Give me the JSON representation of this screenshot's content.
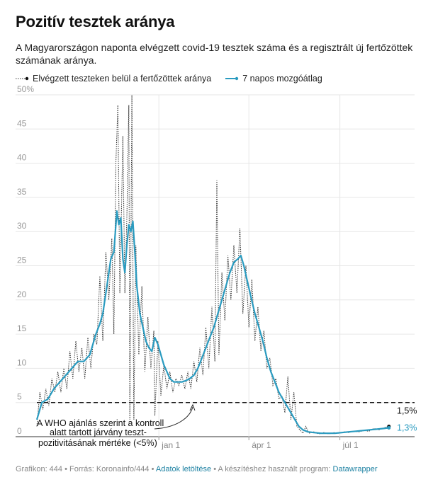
{
  "title": "Pozitív tesztek aránya",
  "subtitle": "A Magyarországon naponta elvégzett covid-19 tesztek száma és a regisztrált új fertőzöttek számának aránya.",
  "legend": {
    "daily_label": "Elvégzett teszteken belül a fertőzöttek aránya",
    "avg_label": "7 napos mozgóátlag"
  },
  "colors": {
    "daily": "#333333",
    "avg": "#2a9bc0",
    "threshold": "#111111",
    "grid": "#e6e6e6"
  },
  "footer": {
    "prefix": "Grafikon: 444 • Forrás: Koronainfo/444 • ",
    "download_link": "Adatok letöltése",
    "middle": " • A készítéshez használt program: ",
    "tool_link": "Datawrapper"
  },
  "chart_data": {
    "type": "line",
    "x_axis": {
      "type": "date",
      "range": [
        "2020-09-01",
        "2021-08-22"
      ],
      "ticks": [
        {
          "date": "2021-01-01",
          "label": "jan 1"
        },
        {
          "date": "2021-04-01",
          "label": "ápr 1"
        },
        {
          "date": "2021-07-01",
          "label": "júl 1"
        }
      ]
    },
    "y_axis": {
      "range": [
        0,
        50
      ],
      "ticks": [
        0,
        5,
        10,
        15,
        20,
        25,
        30,
        35,
        40,
        45,
        50
      ],
      "top_tick_label": "50%",
      "grid": true
    },
    "series": [
      {
        "name": "Elvégzett teszteken belül a fertőzöttek aránya",
        "style": "dotted",
        "points": [
          [
            "2020-09-01",
            1.5
          ],
          [
            "2020-09-04",
            6.5
          ],
          [
            "2020-09-07",
            4.0
          ],
          [
            "2020-09-10",
            7.0
          ],
          [
            "2020-09-13",
            4.5
          ],
          [
            "2020-09-16",
            8.5
          ],
          [
            "2020-09-19",
            6.5
          ],
          [
            "2020-09-22",
            9.5
          ],
          [
            "2020-09-25",
            6.5
          ],
          [
            "2020-09-28",
            10.0
          ],
          [
            "2020-10-01",
            7.0
          ],
          [
            "2020-10-04",
            12.5
          ],
          [
            "2020-10-07",
            8.5
          ],
          [
            "2020-10-10",
            14.0
          ],
          [
            "2020-10-13",
            9.5
          ],
          [
            "2020-10-16",
            13.0
          ],
          [
            "2020-10-19",
            8.5
          ],
          [
            "2020-10-22",
            14.5
          ],
          [
            "2020-10-25",
            10.0
          ],
          [
            "2020-10-28",
            15.0
          ],
          [
            "2020-10-31",
            13.5
          ],
          [
            "2020-11-03",
            23.5
          ],
          [
            "2020-11-06",
            14.0
          ],
          [
            "2020-11-09",
            27.0
          ],
          [
            "2020-11-12",
            20.0
          ],
          [
            "2020-11-15",
            29.0
          ],
          [
            "2020-11-17",
            15.0
          ],
          [
            "2020-11-19",
            40.0
          ],
          [
            "2020-11-21",
            48.5
          ],
          [
            "2020-11-23",
            21.0
          ],
          [
            "2020-11-26",
            44.0
          ],
          [
            "2020-11-28",
            21.0
          ],
          [
            "2020-11-30",
            32.0
          ],
          [
            "2020-12-02",
            48.5
          ],
          [
            "2020-12-03",
            2.5
          ],
          [
            "2020-12-05",
            50.0
          ],
          [
            "2020-12-07",
            2.5
          ],
          [
            "2020-12-09",
            28.0
          ],
          [
            "2020-12-12",
            12.0
          ],
          [
            "2020-12-15",
            22.0
          ],
          [
            "2020-12-18",
            9.5
          ],
          [
            "2020-12-21",
            17.5
          ],
          [
            "2020-12-24",
            10.0
          ],
          [
            "2020-12-27",
            15.5
          ],
          [
            "2020-12-28",
            3.0
          ],
          [
            "2020-12-31",
            14.0
          ],
          [
            "2021-01-03",
            6.0
          ],
          [
            "2021-01-06",
            10.5
          ],
          [
            "2021-01-09",
            7.0
          ],
          [
            "2021-01-12",
            9.5
          ],
          [
            "2021-01-15",
            6.5
          ],
          [
            "2021-01-18",
            8.5
          ],
          [
            "2021-01-21",
            7.5
          ],
          [
            "2021-01-24",
            9.0
          ],
          [
            "2021-01-27",
            7.0
          ],
          [
            "2021-01-30",
            9.5
          ],
          [
            "2021-02-02",
            7.0
          ],
          [
            "2021-02-05",
            11.0
          ],
          [
            "2021-02-08",
            8.0
          ],
          [
            "2021-02-11",
            13.0
          ],
          [
            "2021-02-14",
            9.0
          ],
          [
            "2021-02-17",
            16.0
          ],
          [
            "2021-02-20",
            10.0
          ],
          [
            "2021-02-23",
            19.0
          ],
          [
            "2021-02-26",
            11.0
          ],
          [
            "2021-02-28",
            37.5
          ],
          [
            "2021-03-02",
            12.0
          ],
          [
            "2021-03-05",
            24.0
          ],
          [
            "2021-03-08",
            17.0
          ],
          [
            "2021-03-11",
            26.5
          ],
          [
            "2021-03-14",
            20.0
          ],
          [
            "2021-03-17",
            28.0
          ],
          [
            "2021-03-20",
            21.0
          ],
          [
            "2021-03-23",
            30.5
          ],
          [
            "2021-03-26",
            18.0
          ],
          [
            "2021-03-29",
            25.0
          ],
          [
            "2021-04-01",
            16.0
          ],
          [
            "2021-04-04",
            23.0
          ],
          [
            "2021-04-07",
            14.0
          ],
          [
            "2021-04-10",
            19.0
          ],
          [
            "2021-04-13",
            12.5
          ],
          [
            "2021-04-16",
            15.5
          ],
          [
            "2021-04-19",
            10.0
          ],
          [
            "2021-04-22",
            11.5
          ],
          [
            "2021-04-25",
            7.5
          ],
          [
            "2021-04-28",
            8.5
          ],
          [
            "2021-05-01",
            5.5
          ],
          [
            "2021-05-04",
            6.0
          ],
          [
            "2021-05-07",
            3.5
          ],
          [
            "2021-05-10",
            8.8
          ],
          [
            "2021-05-13",
            2.5
          ],
          [
            "2021-05-16",
            6.5
          ],
          [
            "2021-05-19",
            1.5
          ],
          [
            "2021-05-22",
            1.0
          ],
          [
            "2021-05-25",
            0.5
          ],
          [
            "2021-05-28",
            1.5
          ],
          [
            "2021-05-31",
            0.5
          ],
          [
            "2021-06-05",
            0.7
          ],
          [
            "2021-06-10",
            0.4
          ],
          [
            "2021-06-15",
            0.6
          ],
          [
            "2021-06-20",
            0.4
          ],
          [
            "2021-06-25",
            0.6
          ],
          [
            "2021-06-30",
            0.5
          ],
          [
            "2021-07-05",
            0.7
          ],
          [
            "2021-07-10",
            0.6
          ],
          [
            "2021-07-15",
            0.8
          ],
          [
            "2021-07-20",
            0.7
          ],
          [
            "2021-07-25",
            0.9
          ],
          [
            "2021-07-30",
            0.8
          ],
          [
            "2021-08-04",
            1.2
          ],
          [
            "2021-08-09",
            1.0
          ],
          [
            "2021-08-14",
            1.3
          ],
          [
            "2021-08-19",
            1.5
          ]
        ],
        "end_label": "1,5%"
      },
      {
        "name": "7 napos mozgóátlag",
        "style": "solid",
        "points": [
          [
            "2020-09-01",
            2.5
          ],
          [
            "2020-09-06",
            5.0
          ],
          [
            "2020-09-12",
            5.5
          ],
          [
            "2020-09-18",
            7.0
          ],
          [
            "2020-09-24",
            8.0
          ],
          [
            "2020-09-30",
            9.0
          ],
          [
            "2020-10-06",
            10.0
          ],
          [
            "2020-10-12",
            11.0
          ],
          [
            "2020-10-18",
            11.0
          ],
          [
            "2020-10-24",
            12.0
          ],
          [
            "2020-10-30",
            15.0
          ],
          [
            "2020-11-03",
            16.5
          ],
          [
            "2020-11-06",
            18.0
          ],
          [
            "2020-11-10",
            22.0
          ],
          [
            "2020-11-14",
            26.0
          ],
          [
            "2020-11-17",
            27.0
          ],
          [
            "2020-11-20",
            33.0
          ],
          [
            "2020-11-22",
            31.0
          ],
          [
            "2020-11-24",
            32.0
          ],
          [
            "2020-11-26",
            26.0
          ],
          [
            "2020-11-28",
            24.0
          ],
          [
            "2020-11-30",
            28.0
          ],
          [
            "2020-12-02",
            31.0
          ],
          [
            "2020-12-04",
            30.0
          ],
          [
            "2020-12-06",
            31.5
          ],
          [
            "2020-12-08",
            27.0
          ],
          [
            "2020-12-10",
            22.0
          ],
          [
            "2020-12-13",
            18.0
          ],
          [
            "2020-12-16",
            16.0
          ],
          [
            "2020-12-19",
            14.0
          ],
          [
            "2020-12-22",
            13.0
          ],
          [
            "2020-12-25",
            12.5
          ],
          [
            "2020-12-28",
            14.5
          ],
          [
            "2020-12-31",
            13.5
          ],
          [
            "2021-01-03",
            12.0
          ],
          [
            "2021-01-06",
            10.5
          ],
          [
            "2021-01-09",
            9.5
          ],
          [
            "2021-01-12",
            8.5
          ],
          [
            "2021-01-16",
            8.0
          ],
          [
            "2021-01-20",
            8.0
          ],
          [
            "2021-01-24",
            8.0
          ],
          [
            "2021-01-28",
            8.2
          ],
          [
            "2021-02-01",
            8.5
          ],
          [
            "2021-02-05",
            9.0
          ],
          [
            "2021-02-09",
            10.0
          ],
          [
            "2021-02-13",
            11.5
          ],
          [
            "2021-02-17",
            13.0
          ],
          [
            "2021-02-21",
            14.5
          ],
          [
            "2021-02-25",
            16.0
          ],
          [
            "2021-03-01",
            18.0
          ],
          [
            "2021-03-05",
            20.0
          ],
          [
            "2021-03-09",
            22.0
          ],
          [
            "2021-03-13",
            24.0
          ],
          [
            "2021-03-17",
            25.5
          ],
          [
            "2021-03-21",
            26.0
          ],
          [
            "2021-03-24",
            26.5
          ],
          [
            "2021-03-27",
            25.0
          ],
          [
            "2021-03-30",
            23.0
          ],
          [
            "2021-04-03",
            20.5
          ],
          [
            "2021-04-07",
            18.0
          ],
          [
            "2021-04-11",
            16.0
          ],
          [
            "2021-04-15",
            14.0
          ],
          [
            "2021-04-19",
            11.5
          ],
          [
            "2021-04-23",
            9.5
          ],
          [
            "2021-04-27",
            8.0
          ],
          [
            "2021-05-01",
            6.5
          ],
          [
            "2021-05-05",
            5.5
          ],
          [
            "2021-05-09",
            4.5
          ],
          [
            "2021-05-13",
            3.5
          ],
          [
            "2021-05-17",
            2.5
          ],
          [
            "2021-05-21",
            1.5
          ],
          [
            "2021-05-25",
            1.0
          ],
          [
            "2021-05-30",
            0.7
          ],
          [
            "2021-06-05",
            0.6
          ],
          [
            "2021-06-12",
            0.5
          ],
          [
            "2021-06-19",
            0.5
          ],
          [
            "2021-06-26",
            0.5
          ],
          [
            "2021-07-03",
            0.6
          ],
          [
            "2021-07-10",
            0.7
          ],
          [
            "2021-07-17",
            0.8
          ],
          [
            "2021-07-24",
            0.9
          ],
          [
            "2021-07-31",
            1.0
          ],
          [
            "2021-08-07",
            1.1
          ],
          [
            "2021-08-14",
            1.2
          ],
          [
            "2021-08-19",
            1.3
          ]
        ],
        "end_label": "1,3%"
      }
    ],
    "threshold": {
      "value": 5,
      "style": "dashed"
    },
    "annotation": {
      "lines": [
        "A WHO ajánlás szerint a kontroll",
        "alatt tartott járvány teszt-",
        "pozitivitásának  mértéke (<5%)"
      ]
    }
  }
}
